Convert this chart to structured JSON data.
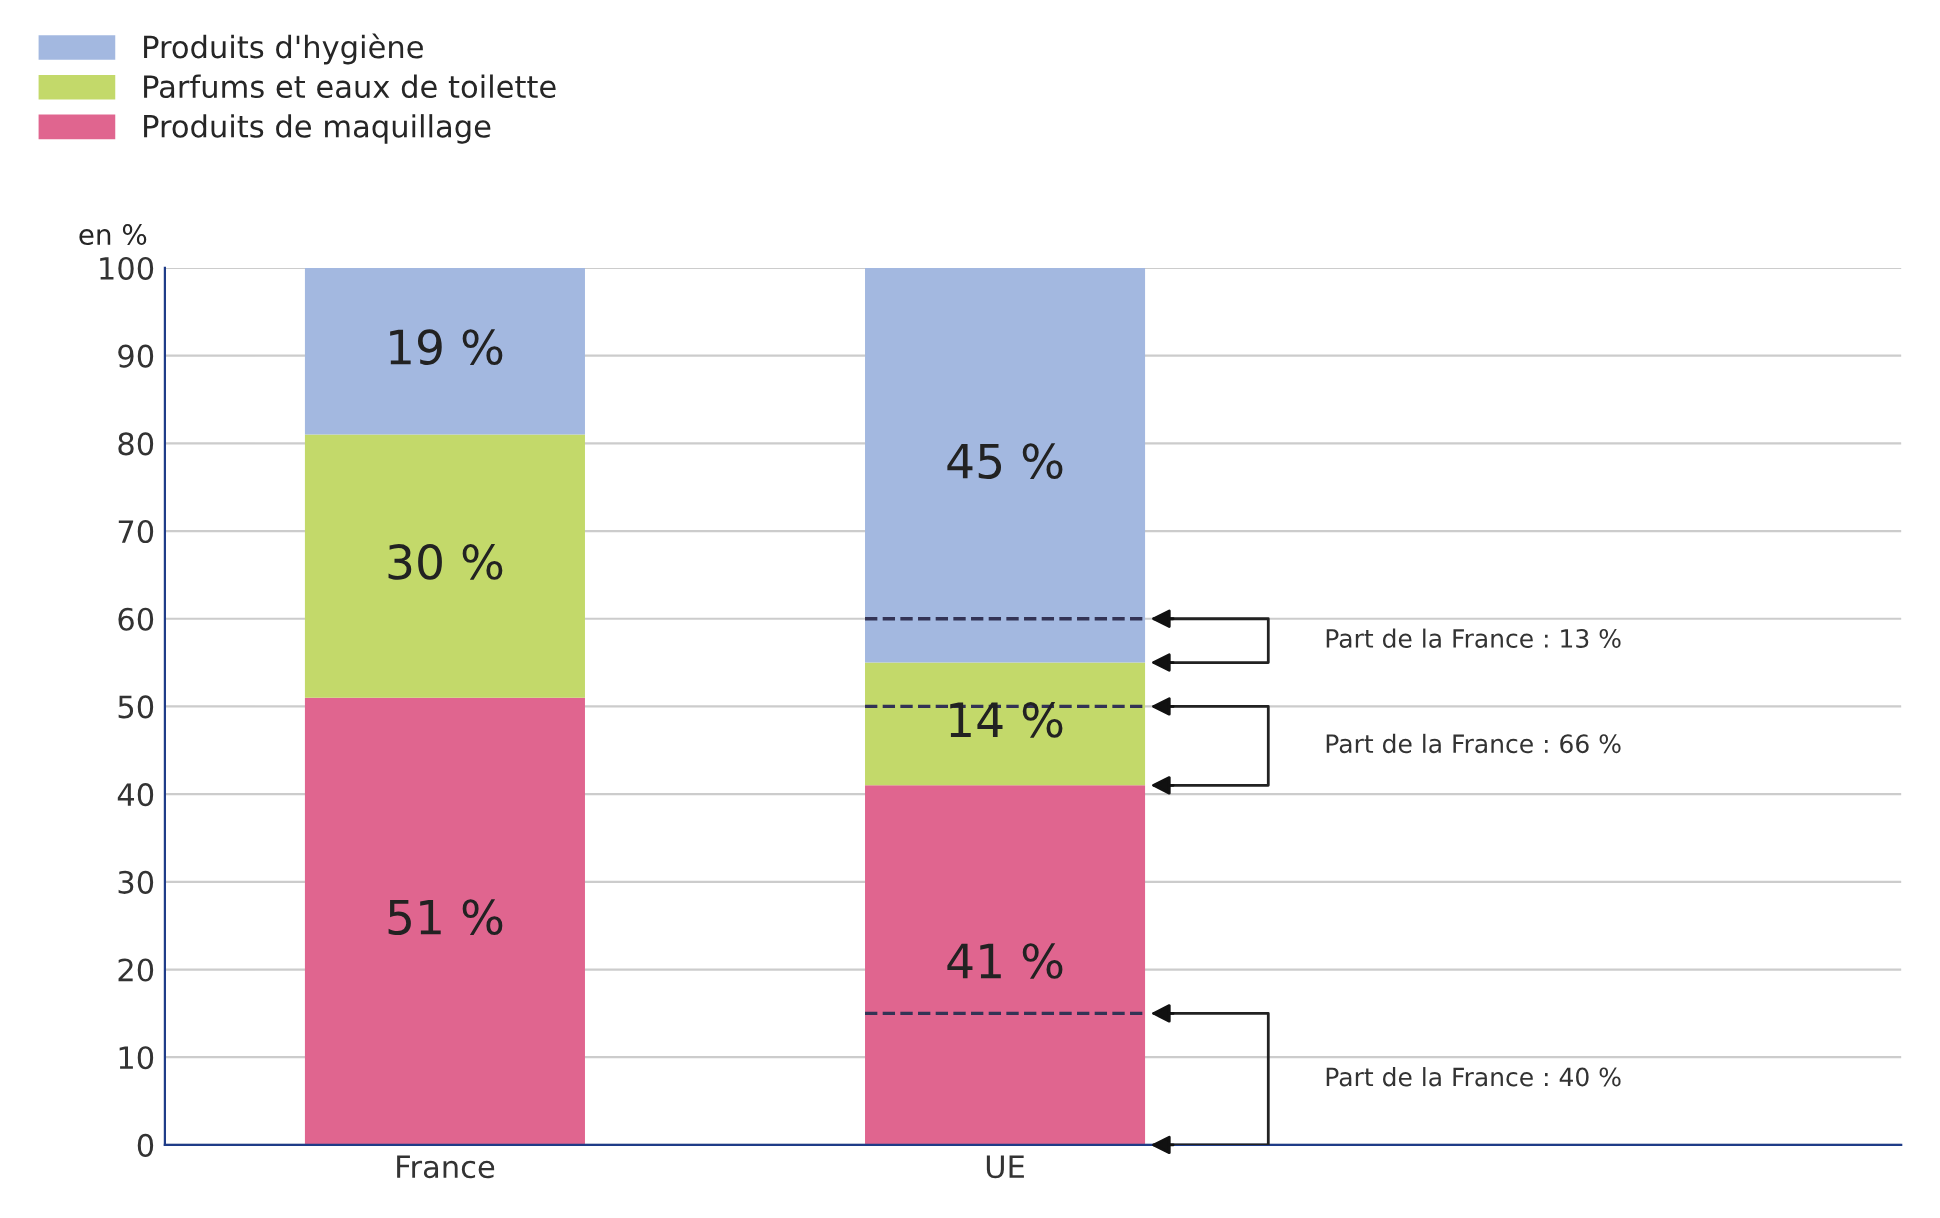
{
  "chart_data": {
    "type": "bar",
    "stacked": true,
    "ylabel": "en %",
    "categories": [
      "France",
      "UE"
    ],
    "series": [
      {
        "name": "Produits de maquillage",
        "color": "#e0658f",
        "values": [
          51,
          41
        ],
        "value_labels": [
          "51 %",
          "41 %"
        ]
      },
      {
        "name": "Parfums et eaux de toilette",
        "color": "#c3d96a",
        "values": [
          30,
          14
        ],
        "value_labels": [
          "30 %",
          "14 %"
        ]
      },
      {
        "name": "Produits d'hygiène",
        "color": "#a3b8e0",
        "values": [
          19,
          45
        ],
        "value_labels": [
          "19 %",
          "45 %"
        ]
      }
    ],
    "ylim": [
      0,
      100
    ],
    "yticks": [
      0,
      10,
      20,
      30,
      40,
      50,
      60,
      70,
      80,
      90,
      100
    ],
    "grid": "y",
    "legend": "top left",
    "ref_lines": [
      {
        "axis": "y",
        "value": 60,
        "color": "#333355",
        "line_style": "dashed"
      },
      {
        "axis": "y",
        "value": 50,
        "color": "#333355",
        "line_style": "dashed"
      },
      {
        "axis": "y",
        "value": 15,
        "color": "#333355",
        "line_style": "dashed"
      }
    ],
    "annotations": [
      "Part de la France : 13 %",
      "Part de la France : 66 %",
      "Part de la France : 40 %"
    ]
  }
}
